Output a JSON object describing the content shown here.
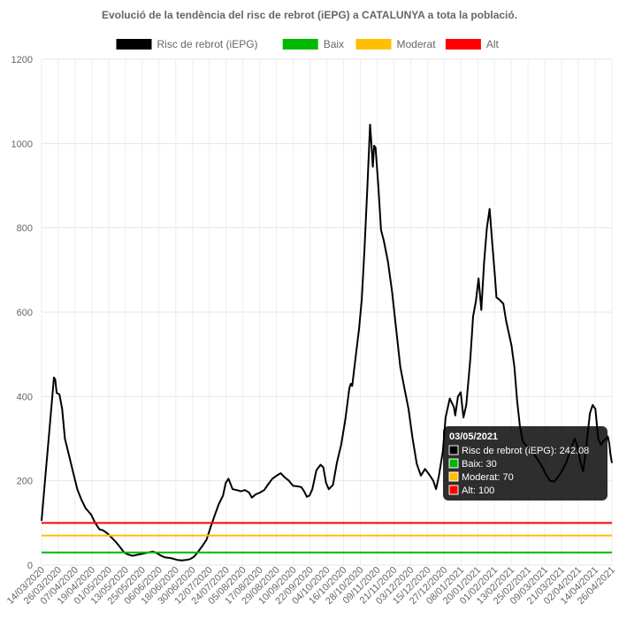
{
  "chart_data": {
    "type": "line",
    "title": "Evolució de la tendència del risc de rebrot (iEPG) a CATALUNYA a tota la població.",
    "xlabel": "",
    "ylabel": "",
    "ylim": [
      0,
      1200
    ],
    "yticks": [
      0,
      200,
      400,
      600,
      800,
      1000,
      1200
    ],
    "grid": true,
    "legend_position": "top",
    "x_start": "14/03/2020",
    "x_end": "03/05/2021",
    "x_tick_labels": [
      "14/03/2020",
      "26/03/2020",
      "07/04/2020",
      "19/04/2020",
      "01/05/2020",
      "13/05/2020",
      "25/05/2020",
      "06/06/2020",
      "18/06/2020",
      "30/06/2020",
      "12/07/2020",
      "24/07/2020",
      "05/08/2020",
      "17/08/2020",
      "29/08/2020",
      "10/09/2020",
      "22/09/2020",
      "04/10/2020",
      "16/10/2020",
      "28/10/2020",
      "09/11/2020",
      "21/11/2020",
      "03/12/2020",
      "15/12/2020",
      "27/12/2020",
      "08/01/2021",
      "20/01/2021",
      "01/02/2021",
      "13/02/2021",
      "25/02/2021",
      "09/03/2021",
      "21/03/2021",
      "02/04/2021",
      "14/04/2021",
      "26/04/2021"
    ],
    "series": [
      {
        "name": "Risc de rebrot (iEPG)",
        "color": "#000000",
        "points": [
          [
            "14/03/2020",
            105
          ],
          [
            "17/03/2020",
            220
          ],
          [
            "20/03/2020",
            330
          ],
          [
            "23/03/2020",
            445
          ],
          [
            "24/03/2020",
            440
          ],
          [
            "25/03/2020",
            408
          ],
          [
            "27/03/2020",
            405
          ],
          [
            "29/03/2020",
            370
          ],
          [
            "31/03/2020",
            300
          ],
          [
            "03/04/2020",
            260
          ],
          [
            "06/04/2020",
            220
          ],
          [
            "09/04/2020",
            180
          ],
          [
            "12/04/2020",
            155
          ],
          [
            "15/04/2020",
            135
          ],
          [
            "19/04/2020",
            120
          ],
          [
            "22/04/2020",
            100
          ],
          [
            "25/04/2020",
            85
          ],
          [
            "28/04/2020",
            82
          ],
          [
            "01/05/2020",
            75
          ],
          [
            "04/05/2020",
            65
          ],
          [
            "07/05/2020",
            55
          ],
          [
            "10/05/2020",
            43
          ],
          [
            "13/05/2020",
            30
          ],
          [
            "16/05/2020",
            25
          ],
          [
            "19/05/2020",
            22
          ],
          [
            "22/05/2020",
            24
          ],
          [
            "25/05/2020",
            26
          ],
          [
            "28/05/2020",
            28
          ],
          [
            "31/05/2020",
            30
          ],
          [
            "03/06/2020",
            32
          ],
          [
            "06/06/2020",
            28
          ],
          [
            "09/06/2020",
            22
          ],
          [
            "12/06/2020",
            18
          ],
          [
            "15/06/2020",
            17
          ],
          [
            "18/06/2020",
            15
          ],
          [
            "21/06/2020",
            12
          ],
          [
            "24/06/2020",
            11
          ],
          [
            "27/06/2020",
            12
          ],
          [
            "30/06/2020",
            14
          ],
          [
            "03/07/2020",
            20
          ],
          [
            "06/07/2020",
            32
          ],
          [
            "09/07/2020",
            45
          ],
          [
            "12/07/2020",
            60
          ],
          [
            "15/07/2020",
            90
          ],
          [
            "18/07/2020",
            118
          ],
          [
            "21/07/2020",
            145
          ],
          [
            "24/07/2020",
            165
          ],
          [
            "26/07/2020",
            195
          ],
          [
            "28/07/2020",
            205
          ],
          [
            "31/07/2020",
            180
          ],
          [
            "03/08/2020",
            178
          ],
          [
            "06/08/2020",
            175
          ],
          [
            "09/08/2020",
            178
          ],
          [
            "12/08/2020",
            172
          ],
          [
            "14/08/2020",
            160
          ],
          [
            "17/08/2020",
            168
          ],
          [
            "20/08/2020",
            172
          ],
          [
            "23/08/2020",
            178
          ],
          [
            "26/08/2020",
            192
          ],
          [
            "29/08/2020",
            205
          ],
          [
            "01/09/2020",
            212
          ],
          [
            "04/09/2020",
            218
          ],
          [
            "07/09/2020",
            208
          ],
          [
            "10/09/2020",
            200
          ],
          [
            "13/09/2020",
            188
          ],
          [
            "16/09/2020",
            187
          ],
          [
            "19/09/2020",
            185
          ],
          [
            "21/09/2020",
            175
          ],
          [
            "23/09/2020",
            162
          ],
          [
            "25/09/2020",
            165
          ],
          [
            "27/09/2020",
            180
          ],
          [
            "30/09/2020",
            225
          ],
          [
            "03/10/2020",
            238
          ],
          [
            "05/10/2020",
            232
          ],
          [
            "07/10/2020",
            195
          ],
          [
            "09/10/2020",
            180
          ],
          [
            "12/10/2020",
            190
          ],
          [
            "15/10/2020",
            245
          ],
          [
            "18/10/2020",
            285
          ],
          [
            "21/10/2020",
            345
          ],
          [
            "24/10/2020",
            420
          ],
          [
            "25/10/2020",
            430
          ],
          [
            "26/10/2020",
            425
          ],
          [
            "28/10/2020",
            480
          ],
          [
            "31/10/2020",
            560
          ],
          [
            "02/11/2020",
            630
          ],
          [
            "04/11/2020",
            750
          ],
          [
            "06/11/2020",
            890
          ],
          [
            "08/11/2020",
            1045
          ],
          [
            "09/11/2020",
            1000
          ],
          [
            "10/11/2020",
            945
          ],
          [
            "11/11/2020",
            995
          ],
          [
            "12/11/2020",
            990
          ],
          [
            "14/11/2020",
            900
          ],
          [
            "16/11/2020",
            795
          ],
          [
            "18/11/2020",
            770
          ],
          [
            "21/11/2020",
            720
          ],
          [
            "24/11/2020",
            650
          ],
          [
            "27/11/2020",
            560
          ],
          [
            "30/11/2020",
            470
          ],
          [
            "03/12/2020",
            420
          ],
          [
            "06/12/2020",
            370
          ],
          [
            "09/12/2020",
            300
          ],
          [
            "12/12/2020",
            240
          ],
          [
            "15/12/2020",
            212
          ],
          [
            "18/12/2020",
            228
          ],
          [
            "21/12/2020",
            215
          ],
          [
            "24/12/2020",
            200
          ],
          [
            "26/12/2020",
            180
          ],
          [
            "28/12/2020",
            210
          ],
          [
            "31/12/2020",
            270
          ],
          [
            "02/01/2021",
            350
          ],
          [
            "05/01/2021",
            395
          ],
          [
            "08/01/2021",
            375
          ],
          [
            "09/01/2021",
            355
          ],
          [
            "11/01/2021",
            400
          ],
          [
            "13/01/2021",
            410
          ],
          [
            "15/01/2021",
            350
          ],
          [
            "17/01/2021",
            380
          ],
          [
            "20/01/2021",
            490
          ],
          [
            "22/01/2021",
            590
          ],
          [
            "24/01/2021",
            625
          ],
          [
            "26/01/2021",
            680
          ],
          [
            "28/01/2021",
            605
          ],
          [
            "30/01/2021",
            720
          ],
          [
            "01/02/2021",
            800
          ],
          [
            "03/02/2021",
            845
          ],
          [
            "05/02/2021",
            760
          ],
          [
            "07/02/2021",
            680
          ],
          [
            "08/02/2021",
            635
          ],
          [
            "10/02/2021",
            630
          ],
          [
            "13/02/2021",
            620
          ],
          [
            "15/02/2021",
            580
          ],
          [
            "17/02/2021",
            550
          ],
          [
            "19/02/2021",
            520
          ],
          [
            "21/02/2021",
            470
          ],
          [
            "23/02/2021",
            390
          ],
          [
            "25/02/2021",
            330
          ],
          [
            "27/02/2021",
            295
          ],
          [
            "01/03/2021",
            285
          ],
          [
            "04/03/2021",
            275
          ],
          [
            "07/03/2021",
            265
          ],
          [
            "10/03/2021",
            250
          ],
          [
            "13/03/2021",
            235
          ],
          [
            "16/03/2021",
            215
          ],
          [
            "19/03/2021",
            200
          ],
          [
            "22/03/2021",
            198
          ],
          [
            "25/03/2021",
            210
          ],
          [
            "28/03/2021",
            225
          ],
          [
            "31/03/2021",
            245
          ],
          [
            "03/04/2021",
            275
          ],
          [
            "06/04/2021",
            300
          ],
          [
            "08/04/2021",
            280
          ],
          [
            "10/04/2021",
            245
          ],
          [
            "12/04/2021",
            222
          ],
          [
            "14/04/2021",
            270
          ],
          [
            "17/04/2021",
            360
          ],
          [
            "19/04/2021",
            380
          ],
          [
            "21/04/2021",
            370
          ],
          [
            "23/04/2021",
            300
          ],
          [
            "25/04/2021",
            285
          ],
          [
            "27/04/2021",
            295
          ],
          [
            "29/04/2021",
            300
          ],
          [
            "30/04/2021",
            305
          ],
          [
            "01/05/2021",
            290
          ],
          [
            "02/05/2021",
            262
          ],
          [
            "03/05/2021",
            242.08
          ]
        ]
      },
      {
        "name": "Baix",
        "color": "#00b800",
        "constant": 30
      },
      {
        "name": "Moderat",
        "color": "#ffbf00",
        "constant": 70
      },
      {
        "name": "Alt",
        "color": "#ff0000",
        "constant": 100
      }
    ],
    "tooltip": {
      "title": "03/05/2021",
      "lines": [
        {
          "label": "Risc de rebrot (iEPG): 242.08",
          "color": "#000000"
        },
        {
          "label": "Baix: 30",
          "color": "#00b800"
        },
        {
          "label": "Moderat: 70",
          "color": "#ffbf00"
        },
        {
          "label": "Alt: 100",
          "color": "#ff0000"
        }
      ]
    }
  }
}
